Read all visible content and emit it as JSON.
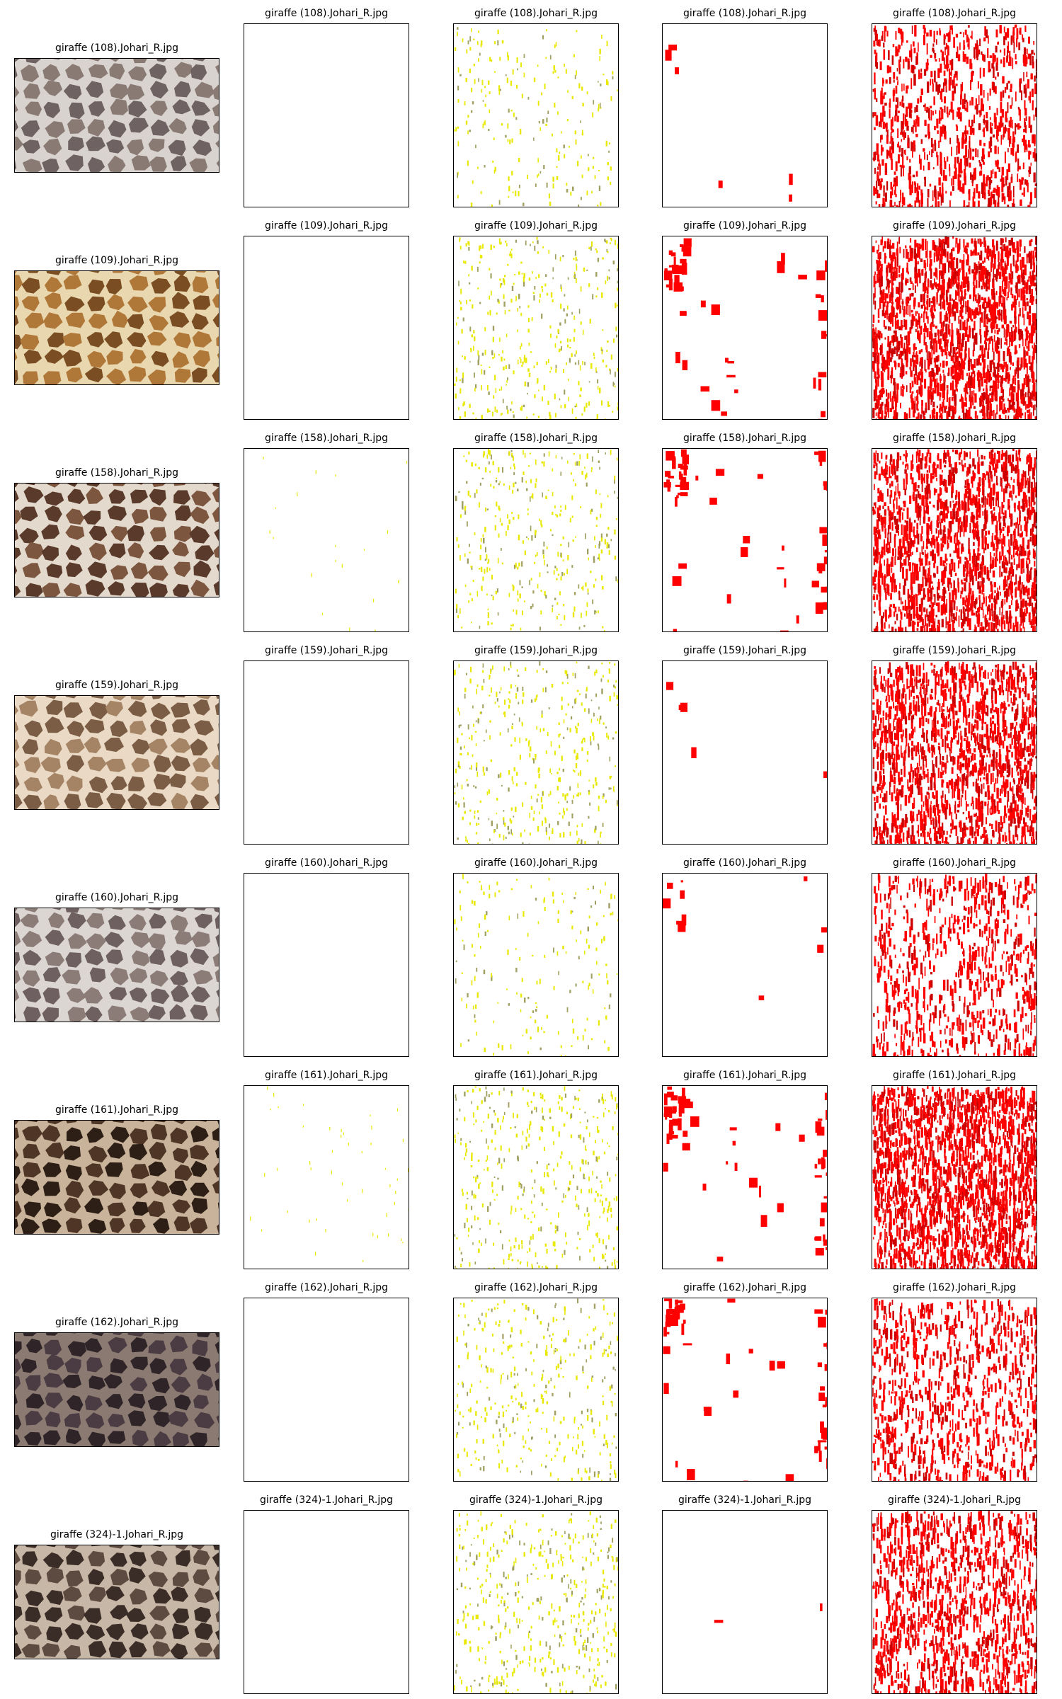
{
  "figure": {
    "layer_colors": [
      "#ffffff",
      "#e8e800",
      "#ff0000",
      "#cc0000"
    ],
    "rows": [
      {
        "file": "giraffe (108).Johari_R.jpg",
        "photo": {
          "base": "#8a7a74",
          "patch": "#6f6262",
          "line": "#d9d3cf"
        },
        "thumb_title": "giraffe (108).Johari_R.jpg",
        "panels": [
          {
            "title": "giraffe (108).Johari_R.jpg",
            "pattern": "empty",
            "density": 0
          },
          {
            "title": "giraffe (108).Johari_R.jpg",
            "pattern": "speckle",
            "density": 0.25
          },
          {
            "title": "giraffe (108).Johari_R.jpg",
            "pattern": "edge",
            "density": 0.05
          },
          {
            "title": "giraffe (108).Johari_R.jpg",
            "pattern": "dense",
            "density": 0.45
          }
        ]
      },
      {
        "file": "giraffe (109).Johari_R.jpg",
        "photo": {
          "base": "#b07838",
          "patch": "#7a4e22",
          "line": "#e9d7b0"
        },
        "thumb_title": "giraffe (109).Johari_R.jpg",
        "panels": [
          {
            "title": "giraffe (109).Johari_R.jpg",
            "pattern": "empty",
            "density": 0
          },
          {
            "title": "giraffe (109).Johari_R.jpg",
            "pattern": "speckle",
            "density": 0.45
          },
          {
            "title": "giraffe (109).Johari_R.jpg",
            "pattern": "edge",
            "density": 0.4
          },
          {
            "title": "giraffe (109).Johari_R.jpg",
            "pattern": "dense",
            "density": 0.9
          }
        ]
      },
      {
        "file": "giraffe (158).Johari_R.jpg",
        "photo": {
          "base": "#7d5640",
          "patch": "#5a3a2a",
          "line": "#e3d9cc"
        },
        "thumb_title": "giraffe (158).Johari_R.jpg",
        "panels": [
          {
            "title": "giraffe (158).Johari_R.jpg",
            "pattern": "sparse",
            "density": 0.05
          },
          {
            "title": "giraffe (158).Johari_R.jpg",
            "pattern": "speckle",
            "density": 0.4
          },
          {
            "title": "giraffe (158).Johari_R.jpg",
            "pattern": "edge",
            "density": 0.5
          },
          {
            "title": "giraffe (158).Johari_R.jpg",
            "pattern": "dense",
            "density": 0.8
          }
        ]
      },
      {
        "file": "giraffe (159).Johari_R.jpg",
        "photo": {
          "base": "#a58466",
          "patch": "#7b5d45",
          "line": "#ead9c4"
        },
        "thumb_title": "giraffe (159).Johari_R.jpg",
        "panels": [
          {
            "title": "giraffe (159).Johari_R.jpg",
            "pattern": "empty",
            "density": 0
          },
          {
            "title": "giraffe (159).Johari_R.jpg",
            "pattern": "speckle",
            "density": 0.45
          },
          {
            "title": "giraffe (159).Johari_R.jpg",
            "pattern": "edge",
            "density": 0.04
          },
          {
            "title": "giraffe (159).Johari_R.jpg",
            "pattern": "dense",
            "density": 0.75
          }
        ]
      },
      {
        "file": "giraffe (160).Johari_R.jpg",
        "photo": {
          "base": "#8c7c78",
          "patch": "#6e6060",
          "line": "#dcd6d2"
        },
        "thumb_title": "giraffe (160).Johari_R.jpg",
        "panels": [
          {
            "title": "giraffe (160).Johari_R.jpg",
            "pattern": "empty",
            "density": 0
          },
          {
            "title": "giraffe (160).Johari_R.jpg",
            "pattern": "speckle",
            "density": 0.2
          },
          {
            "title": "giraffe (160).Johari_R.jpg",
            "pattern": "edge",
            "density": 0.12
          },
          {
            "title": "giraffe (160).Johari_R.jpg",
            "pattern": "dense",
            "density": 0.35
          }
        ]
      },
      {
        "file": "giraffe (161).Johari_R.jpg",
        "photo": {
          "base": "#4e3526",
          "patch": "#2e1f16",
          "line": "#c9b39a"
        },
        "thumb_title": "giraffe (161).Johari_R.jpg",
        "panels": [
          {
            "title": "giraffe (161).Johari_R.jpg",
            "pattern": "sparse",
            "density": 0.12
          },
          {
            "title": "giraffe (161).Johari_R.jpg",
            "pattern": "speckle",
            "density": 0.45
          },
          {
            "title": "giraffe (161).Johari_R.jpg",
            "pattern": "edge",
            "density": 0.55
          },
          {
            "title": "giraffe (161).Johari_R.jpg",
            "pattern": "dense",
            "density": 0.9
          }
        ]
      },
      {
        "file": "giraffe (162).Johari_R.jpg",
        "photo": {
          "base": "#4a3c42",
          "patch": "#2f2428",
          "line": "#8a7a72"
        },
        "thumb_title": "giraffe (162).Johari_R.jpg",
        "panels": [
          {
            "title": "giraffe (162).Johari_R.jpg",
            "pattern": "empty",
            "density": 0
          },
          {
            "title": "giraffe (162).Johari_R.jpg",
            "pattern": "speckle",
            "density": 0.4
          },
          {
            "title": "giraffe (162).Johari_R.jpg",
            "pattern": "edge",
            "density": 0.45
          },
          {
            "title": "giraffe (162).Johari_R.jpg",
            "pattern": "dense",
            "density": 0.4
          }
        ]
      },
      {
        "file": "giraffe (324)-1.Johari_R.jpg",
        "photo": {
          "base": "#5d4a40",
          "patch": "#3a2c26",
          "line": "#c7b7a6"
        },
        "thumb_title": "giraffe (324)-1.Johari_R.jpg",
        "panels": [
          {
            "title": "giraffe (324)-1.Johari_R.jpg",
            "pattern": "empty",
            "density": 0
          },
          {
            "title": "giraffe (324)-1.Johari_R.jpg",
            "pattern": "speckle",
            "density": 0.5
          },
          {
            "title": "giraffe (324)-1.Johari_R.jpg",
            "pattern": "edge",
            "density": 0.02
          },
          {
            "title": "giraffe (324)-1.Johari_R.jpg",
            "pattern": "dense",
            "density": 0.55
          }
        ]
      }
    ]
  }
}
